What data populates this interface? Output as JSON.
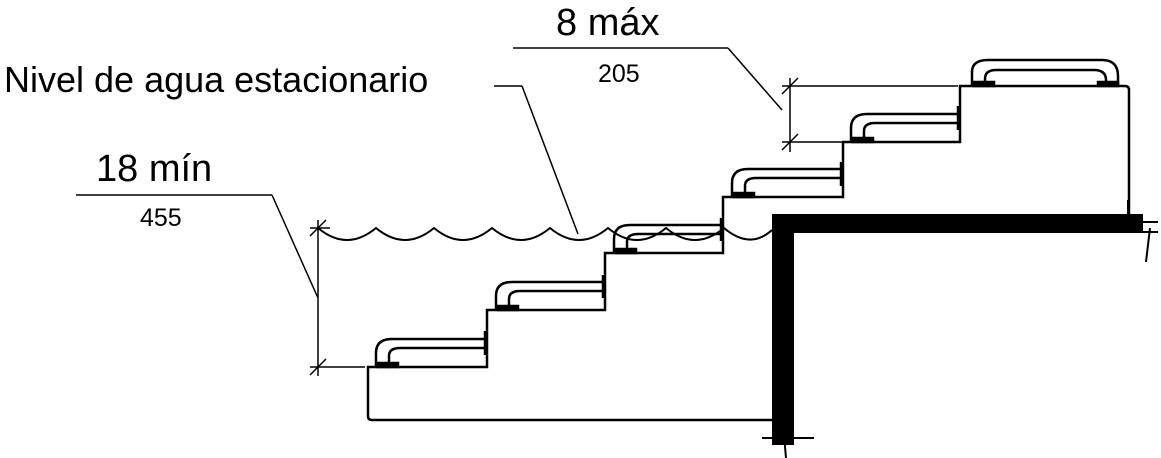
{
  "labels": {
    "water_level": "Nivel de agua estacionario",
    "max_riser": "8 máx",
    "max_riser_mm": "205",
    "min_depth": "18 mín",
    "min_depth_mm": "455"
  },
  "colors": {
    "line": "#000000",
    "background": "#ffffff"
  }
}
